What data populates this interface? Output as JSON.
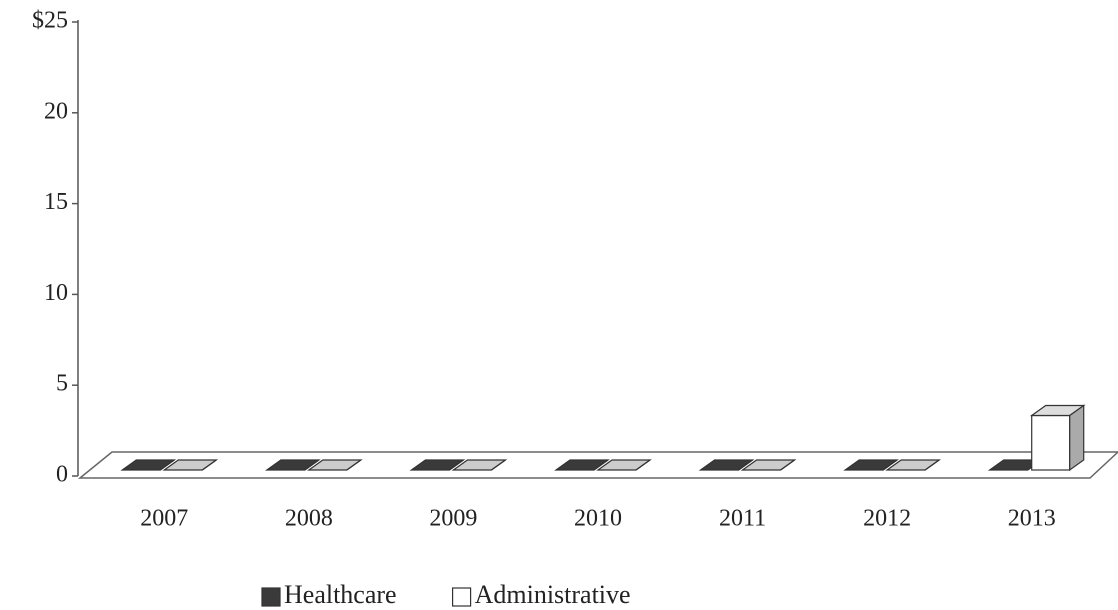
{
  "chart_data": {
    "type": "bar3d",
    "categories": [
      "2007",
      "2008",
      "2009",
      "2010",
      "2011",
      "2012",
      "2013"
    ],
    "series": [
      {
        "name": "Healthcare",
        "color": "#3a3a3a",
        "values": [
          0,
          0,
          0,
          0,
          0,
          0,
          0
        ]
      },
      {
        "name": "Administrative",
        "color": "#ffffff",
        "values": [
          0,
          0,
          0,
          0,
          0,
          0,
          3
        ]
      }
    ],
    "ylim": [
      0,
      25
    ],
    "yticks": [
      0,
      5,
      10,
      15,
      20,
      {
        "value": 25,
        "label": "$25"
      }
    ],
    "legend": "bottom"
  }
}
